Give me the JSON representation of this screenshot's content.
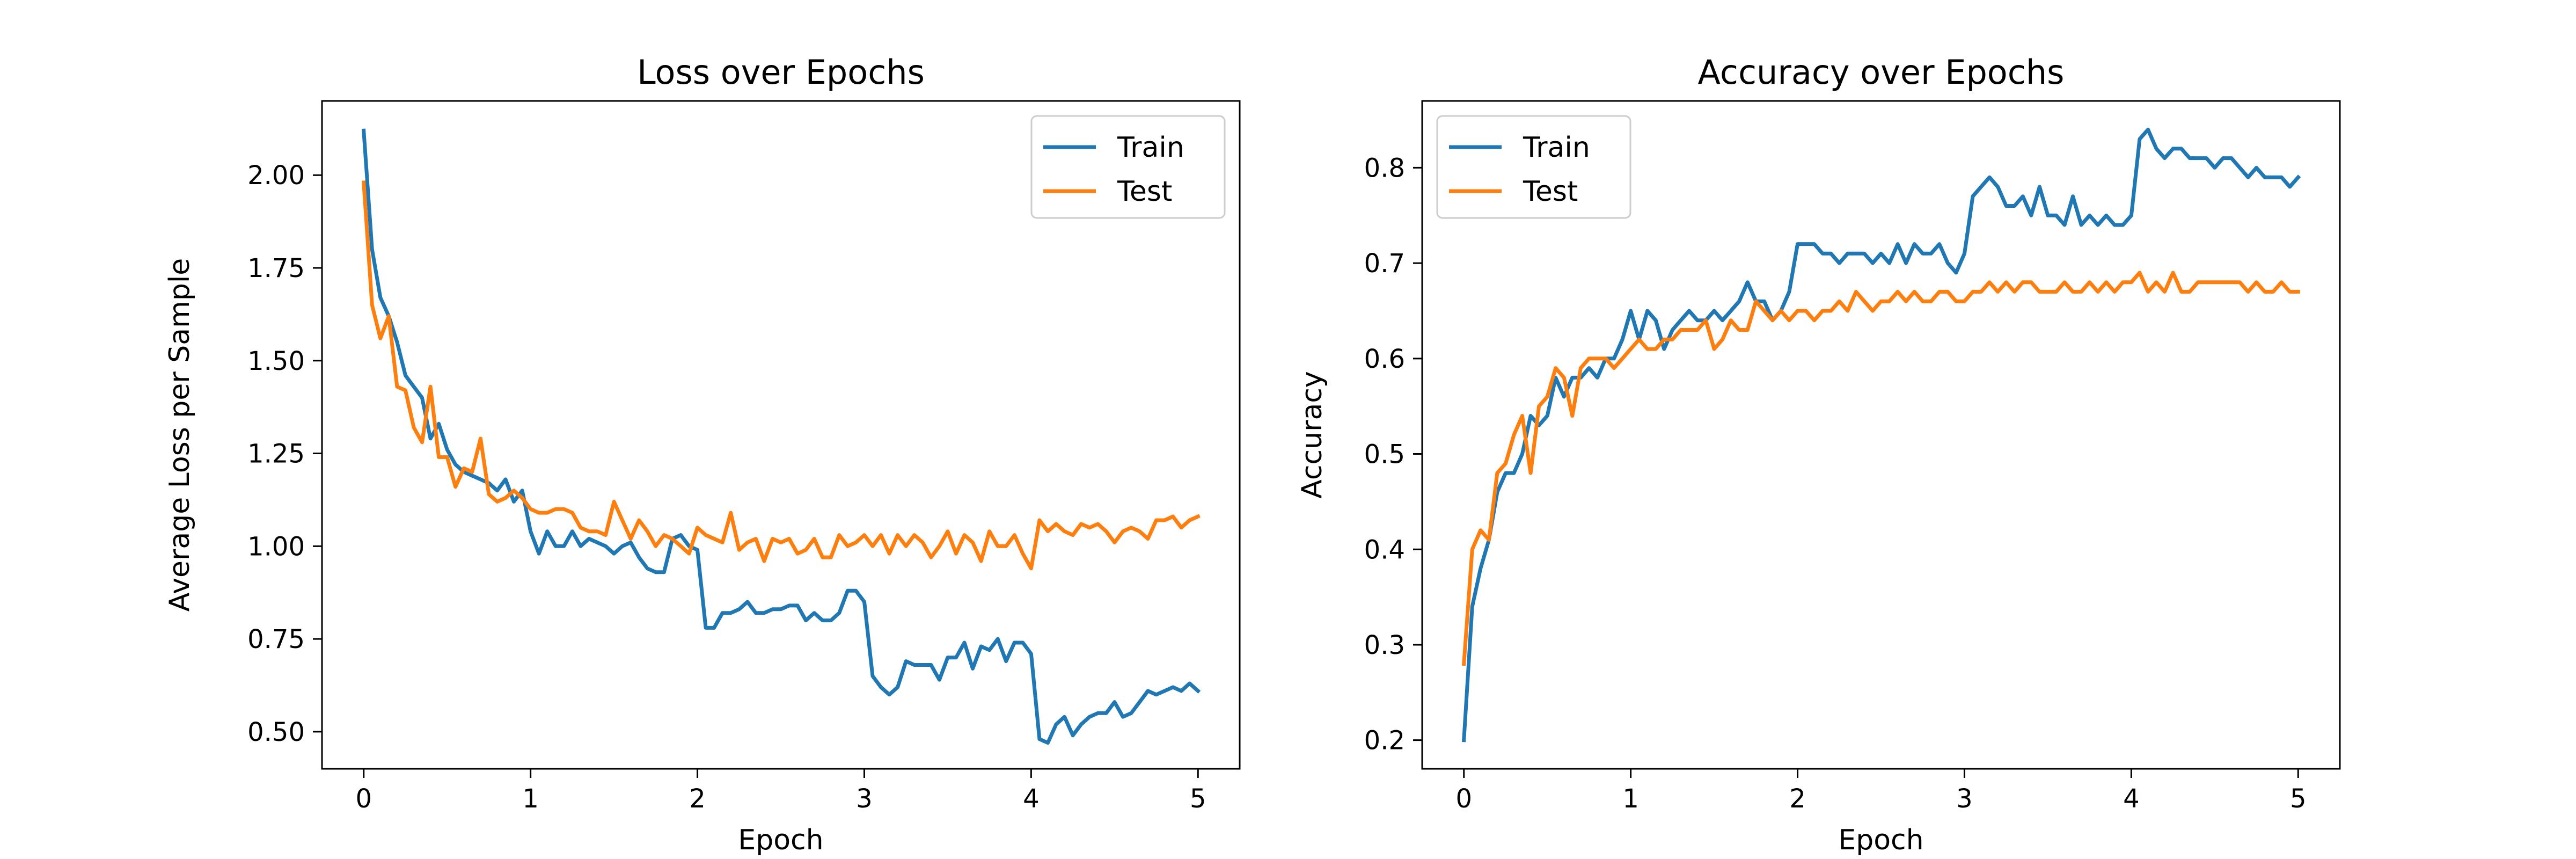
{
  "chart_data": [
    {
      "type": "line",
      "title": "Loss over Epochs",
      "xlabel": "Epoch",
      "ylabel": "Average Loss per Sample",
      "xlim": [
        -0.25,
        5.25
      ],
      "ylim": [
        0.4,
        2.2
      ],
      "xticks": [
        0,
        1,
        2,
        3,
        4,
        5
      ],
      "xtick_labels": [
        "0",
        "1",
        "2",
        "3",
        "4",
        "5"
      ],
      "yticks": [
        0.5,
        0.75,
        1.0,
        1.25,
        1.5,
        1.75,
        2.0
      ],
      "ytick_labels": [
        "0.50",
        "0.75",
        "1.00",
        "1.25",
        "1.50",
        "1.75",
        "2.00"
      ],
      "grid": false,
      "legend": "upper right",
      "x": [
        0,
        0.05,
        0.1,
        0.15,
        0.2,
        0.25,
        0.3,
        0.35,
        0.4,
        0.45,
        0.5,
        0.55,
        0.6,
        0.65,
        0.7,
        0.75,
        0.8,
        0.85,
        0.9,
        0.95,
        1.0,
        1.05,
        1.1,
        1.15,
        1.2,
        1.25,
        1.3,
        1.35,
        1.4,
        1.45,
        1.5,
        1.55,
        1.6,
        1.65,
        1.7,
        1.75,
        1.8,
        1.85,
        1.9,
        1.95,
        2.0,
        2.05,
        2.1,
        2.15,
        2.2,
        2.25,
        2.3,
        2.35,
        2.4,
        2.45,
        2.5,
        2.55,
        2.6,
        2.65,
        2.7,
        2.75,
        2.8,
        2.85,
        2.9,
        2.95,
        3.0,
        3.05,
        3.1,
        3.15,
        3.2,
        3.25,
        3.3,
        3.35,
        3.4,
        3.45,
        3.5,
        3.55,
        3.6,
        3.65,
        3.7,
        3.75,
        3.8,
        3.85,
        3.9,
        3.95,
        4.0,
        4.05,
        4.1,
        4.15,
        4.2,
        4.25,
        4.3,
        4.35,
        4.4,
        4.45,
        4.5,
        4.55,
        4.6,
        4.65,
        4.7,
        4.75,
        4.8,
        4.85,
        4.9,
        4.95,
        5.0
      ],
      "series": [
        {
          "name": "Train",
          "color": "#1f77b4",
          "values": [
            2.12,
            1.8,
            1.67,
            1.62,
            1.55,
            1.46,
            1.43,
            1.4,
            1.29,
            1.33,
            1.26,
            1.22,
            1.2,
            1.19,
            1.18,
            1.17,
            1.15,
            1.18,
            1.12,
            1.15,
            1.04,
            0.98,
            1.04,
            1.0,
            1.0,
            1.04,
            1.0,
            1.02,
            1.01,
            1.0,
            0.98,
            1.0,
            1.01,
            0.97,
            0.94,
            0.93,
            0.93,
            1.02,
            1.03,
            1.0,
            0.99,
            0.78,
            0.78,
            0.82,
            0.82,
            0.83,
            0.85,
            0.82,
            0.82,
            0.83,
            0.83,
            0.84,
            0.84,
            0.8,
            0.82,
            0.8,
            0.8,
            0.82,
            0.88,
            0.88,
            0.85,
            0.65,
            0.62,
            0.6,
            0.62,
            0.69,
            0.68,
            0.68,
            0.68,
            0.64,
            0.7,
            0.7,
            0.74,
            0.67,
            0.73,
            0.72,
            0.75,
            0.69,
            0.74,
            0.74,
            0.71,
            0.48,
            0.47,
            0.52,
            0.54,
            0.49,
            0.52,
            0.54,
            0.55,
            0.55,
            0.58,
            0.54,
            0.55,
            0.58,
            0.61,
            0.6,
            0.61,
            0.62,
            0.61,
            0.63,
            0.61
          ]
        },
        {
          "name": "Test",
          "color": "#ff7f0e",
          "values": [
            1.98,
            1.65,
            1.56,
            1.62,
            1.43,
            1.42,
            1.32,
            1.28,
            1.43,
            1.24,
            1.24,
            1.16,
            1.21,
            1.2,
            1.29,
            1.14,
            1.12,
            1.13,
            1.15,
            1.13,
            1.1,
            1.09,
            1.09,
            1.1,
            1.1,
            1.09,
            1.05,
            1.04,
            1.04,
            1.03,
            1.12,
            1.07,
            1.02,
            1.07,
            1.04,
            1.0,
            1.03,
            1.02,
            1.0,
            0.98,
            1.05,
            1.03,
            1.02,
            1.01,
            1.09,
            0.99,
            1.01,
            1.02,
            0.96,
            1.02,
            1.01,
            1.02,
            0.98,
            0.99,
            1.02,
            0.97,
            0.97,
            1.03,
            1.0,
            1.01,
            1.03,
            1.0,
            1.03,
            0.98,
            1.03,
            1.0,
            1.03,
            1.01,
            0.97,
            1.0,
            1.04,
            0.98,
            1.03,
            1.01,
            0.96,
            1.04,
            1.0,
            1.0,
            1.03,
            0.98,
            0.94,
            1.07,
            1.04,
            1.06,
            1.04,
            1.03,
            1.06,
            1.05,
            1.06,
            1.04,
            1.01,
            1.04,
            1.05,
            1.04,
            1.02,
            1.07,
            1.07,
            1.08,
            1.05,
            1.07,
            1.08
          ]
        }
      ]
    },
    {
      "type": "line",
      "title": "Accuracy over Epochs",
      "xlabel": "Epoch",
      "ylabel": "Accuracy",
      "xlim": [
        -0.25,
        5.25
      ],
      "ylim": [
        0.17,
        0.87
      ],
      "xticks": [
        0,
        1,
        2,
        3,
        4,
        5
      ],
      "xtick_labels": [
        "0",
        "1",
        "2",
        "3",
        "4",
        "5"
      ],
      "yticks": [
        0.2,
        0.3,
        0.4,
        0.5,
        0.6,
        0.7,
        0.8
      ],
      "ytick_labels": [
        "0.2",
        "0.3",
        "0.4",
        "0.5",
        "0.6",
        "0.7",
        "0.8"
      ],
      "grid": false,
      "legend": "upper left",
      "x": [
        0,
        0.05,
        0.1,
        0.15,
        0.2,
        0.25,
        0.3,
        0.35,
        0.4,
        0.45,
        0.5,
        0.55,
        0.6,
        0.65,
        0.7,
        0.75,
        0.8,
        0.85,
        0.9,
        0.95,
        1.0,
        1.05,
        1.1,
        1.15,
        1.2,
        1.25,
        1.3,
        1.35,
        1.4,
        1.45,
        1.5,
        1.55,
        1.6,
        1.65,
        1.7,
        1.75,
        1.8,
        1.85,
        1.9,
        1.95,
        2.0,
        2.05,
        2.1,
        2.15,
        2.2,
        2.25,
        2.3,
        2.35,
        2.4,
        2.45,
        2.5,
        2.55,
        2.6,
        2.65,
        2.7,
        2.75,
        2.8,
        2.85,
        2.9,
        2.95,
        3.0,
        3.05,
        3.1,
        3.15,
        3.2,
        3.25,
        3.3,
        3.35,
        3.4,
        3.45,
        3.5,
        3.55,
        3.6,
        3.65,
        3.7,
        3.75,
        3.8,
        3.85,
        3.9,
        3.95,
        4.0,
        4.05,
        4.1,
        4.15,
        4.2,
        4.25,
        4.3,
        4.35,
        4.4,
        4.45,
        4.5,
        4.55,
        4.6,
        4.65,
        4.7,
        4.75,
        4.8,
        4.85,
        4.9,
        4.95,
        5.0
      ],
      "series": [
        {
          "name": "Train",
          "color": "#1f77b4",
          "values": [
            0.2,
            0.34,
            0.38,
            0.41,
            0.46,
            0.48,
            0.48,
            0.5,
            0.54,
            0.53,
            0.54,
            0.58,
            0.56,
            0.58,
            0.58,
            0.59,
            0.58,
            0.6,
            0.6,
            0.62,
            0.65,
            0.62,
            0.65,
            0.64,
            0.61,
            0.63,
            0.64,
            0.65,
            0.64,
            0.64,
            0.65,
            0.64,
            0.65,
            0.66,
            0.68,
            0.66,
            0.66,
            0.64,
            0.65,
            0.67,
            0.72,
            0.72,
            0.72,
            0.71,
            0.71,
            0.7,
            0.71,
            0.71,
            0.71,
            0.7,
            0.71,
            0.7,
            0.72,
            0.7,
            0.72,
            0.71,
            0.71,
            0.72,
            0.7,
            0.69,
            0.71,
            0.77,
            0.78,
            0.79,
            0.78,
            0.76,
            0.76,
            0.77,
            0.75,
            0.78,
            0.75,
            0.75,
            0.74,
            0.77,
            0.74,
            0.75,
            0.74,
            0.75,
            0.74,
            0.74,
            0.75,
            0.83,
            0.84,
            0.82,
            0.81,
            0.82,
            0.82,
            0.81,
            0.81,
            0.81,
            0.8,
            0.81,
            0.81,
            0.8,
            0.79,
            0.8,
            0.79,
            0.79,
            0.79,
            0.78,
            0.79
          ]
        },
        {
          "name": "Test",
          "color": "#ff7f0e",
          "values": [
            0.28,
            0.4,
            0.42,
            0.41,
            0.48,
            0.49,
            0.52,
            0.54,
            0.48,
            0.55,
            0.56,
            0.59,
            0.58,
            0.54,
            0.59,
            0.6,
            0.6,
            0.6,
            0.59,
            0.6,
            0.61,
            0.62,
            0.61,
            0.61,
            0.62,
            0.62,
            0.63,
            0.63,
            0.63,
            0.64,
            0.61,
            0.62,
            0.64,
            0.63,
            0.63,
            0.66,
            0.65,
            0.64,
            0.65,
            0.64,
            0.65,
            0.65,
            0.64,
            0.65,
            0.65,
            0.66,
            0.65,
            0.67,
            0.66,
            0.65,
            0.66,
            0.66,
            0.67,
            0.66,
            0.67,
            0.66,
            0.66,
            0.67,
            0.67,
            0.66,
            0.66,
            0.67,
            0.67,
            0.68,
            0.67,
            0.68,
            0.67,
            0.68,
            0.68,
            0.67,
            0.67,
            0.67,
            0.68,
            0.67,
            0.67,
            0.68,
            0.67,
            0.68,
            0.67,
            0.68,
            0.68,
            0.69,
            0.67,
            0.68,
            0.67,
            0.69,
            0.67,
            0.67,
            0.68,
            0.68,
            0.68,
            0.68,
            0.68,
            0.68,
            0.67,
            0.68,
            0.67,
            0.67,
            0.68,
            0.67,
            0.67
          ]
        }
      ]
    }
  ]
}
